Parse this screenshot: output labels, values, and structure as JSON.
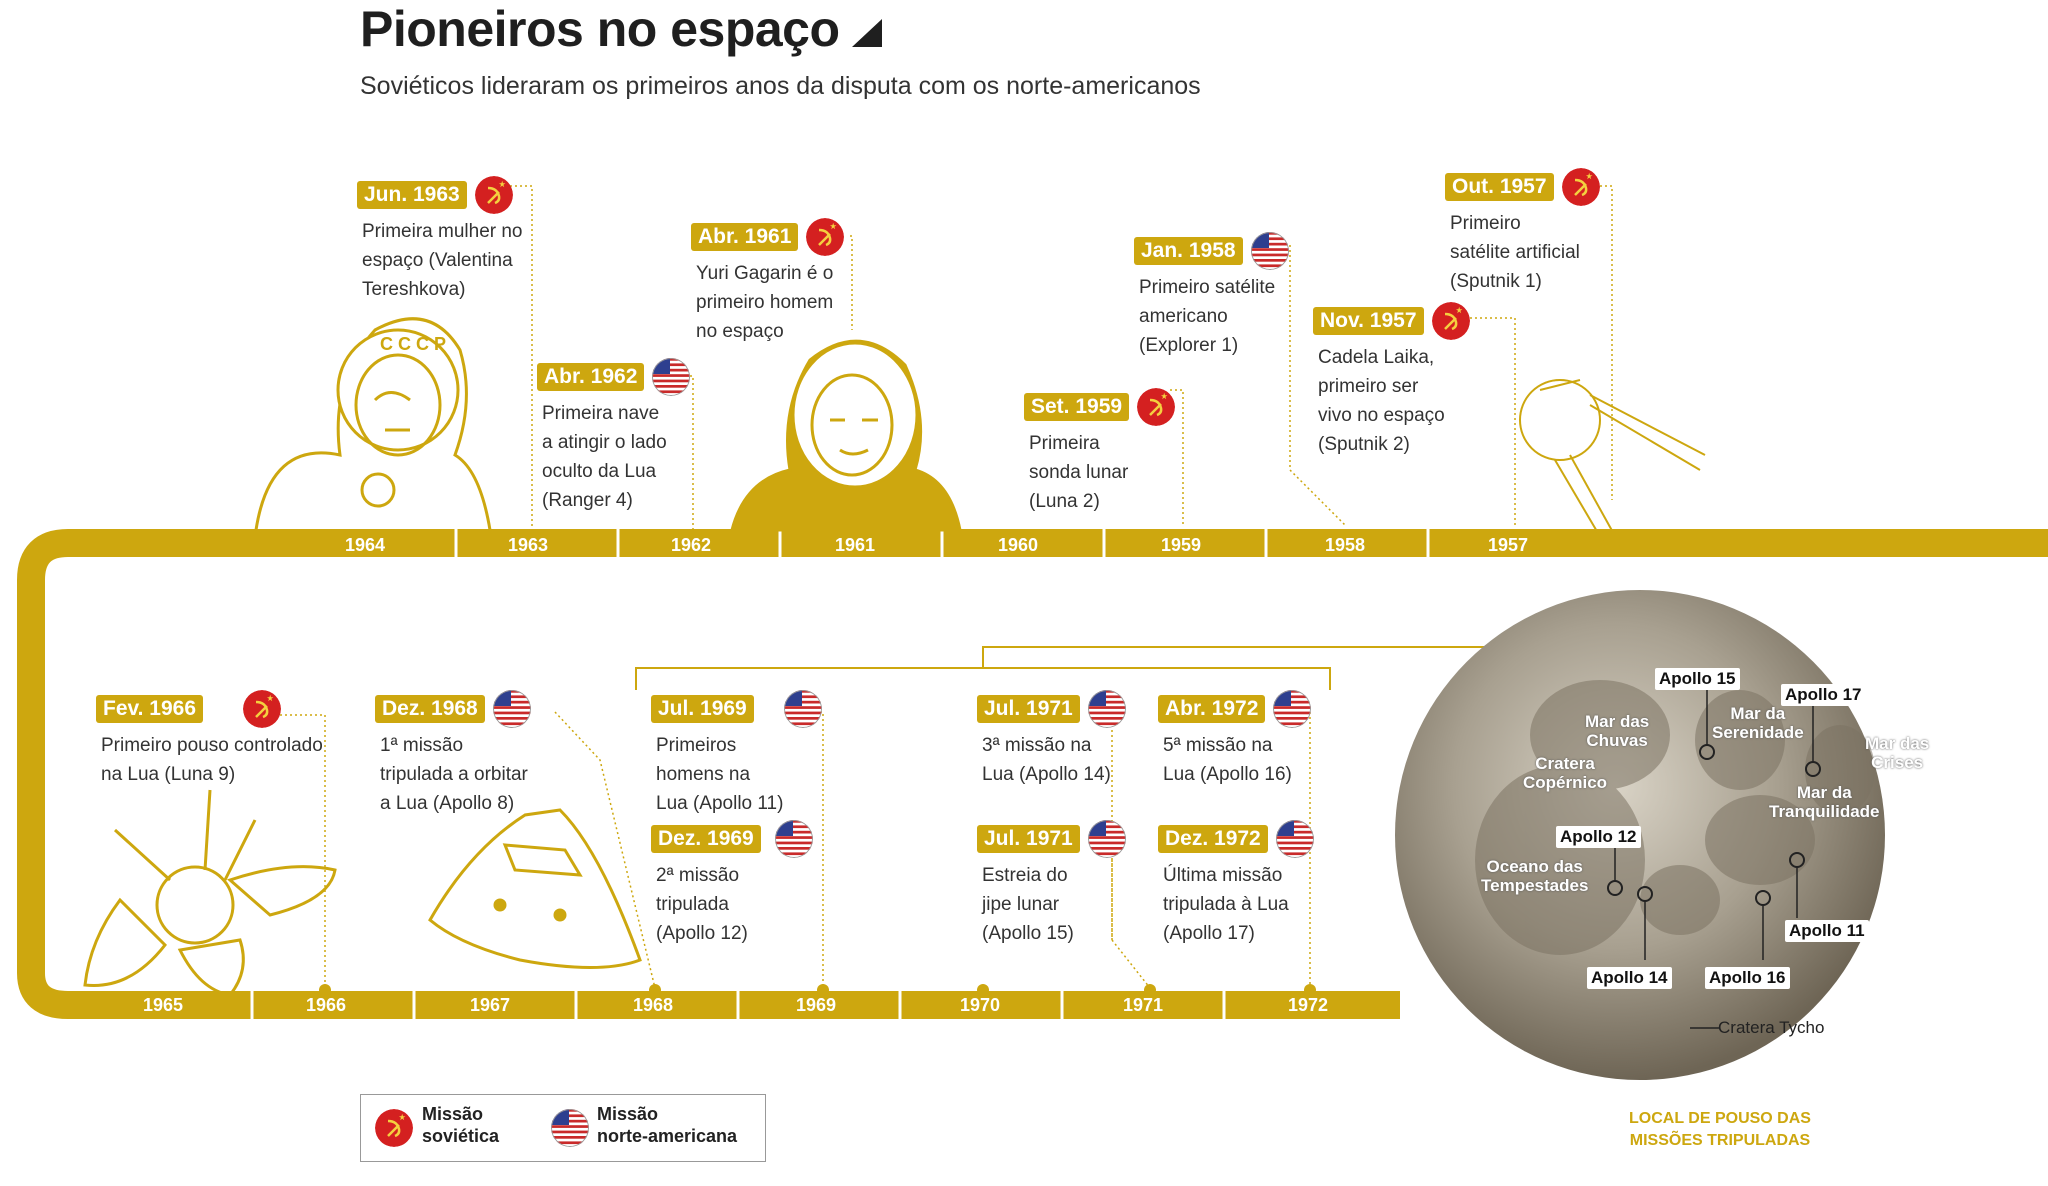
{
  "title": "Pioneiros no espaço",
  "subtitle": "Soviéticos lideraram os primeiros anos da disputa com os norte-americanos",
  "colors": {
    "gold": "#cda70f",
    "soviet": "#d42020",
    "usa_red": "#c92a2a",
    "usa_blue": "#2e3f8f"
  },
  "timeline_top_years": [
    "1964",
    "1963",
    "1962",
    "1961",
    "1960",
    "1959",
    "1958",
    "1957"
  ],
  "timeline_bottom_years": [
    "1965",
    "1966",
    "1967",
    "1968",
    "1969",
    "1970",
    "1971",
    "1972"
  ],
  "events": [
    {
      "date": "Jun. 1963",
      "flag": "soviet",
      "text": "Primeira mulher no\nespaço (Valentina\nTereshkova)"
    },
    {
      "date": "Abr. 1961",
      "flag": "soviet",
      "text": "Yuri Gagarin é o\nprimeiro homem\nno espaço"
    },
    {
      "date": "Abr. 1962",
      "flag": "usa",
      "text": "Primeira nave\na atingir o lado\noculto da Lua\n(Ranger 4)"
    },
    {
      "date": "Jan. 1958",
      "flag": "usa",
      "text": "Primeiro satélite\namericano\n(Explorer 1)"
    },
    {
      "date": "Set. 1959",
      "flag": "soviet",
      "text": "Primeira\nsonda lunar\n(Luna 2)"
    },
    {
      "date": "Out. 1957",
      "flag": "soviet",
      "text": "Primeiro\nsatélite artificial\n(Sputnik 1)"
    },
    {
      "date": "Nov. 1957",
      "flag": "soviet",
      "text": "Cadela Laika,\nprimeiro ser\nvivo no espaço\n(Sputnik 2)"
    },
    {
      "date": "Fev. 1966",
      "flag": "soviet",
      "text": "Primeiro pouso controlado\nna Lua (Luna 9)"
    },
    {
      "date": "Dez. 1968",
      "flag": "usa",
      "text": "1ª missão\ntripulada a orbitar\na Lua (Apollo 8)"
    },
    {
      "date": "Jul. 1969",
      "flag": "usa",
      "text": "Primeiros\nhomens na\nLua (Apollo 11)"
    },
    {
      "date": "Dez. 1969",
      "flag": "usa",
      "text": "2ª missão\ntripulada\n(Apollo 12)"
    },
    {
      "date": "Jul. 1971",
      "flag": "usa",
      "text": "3ª missão na\nLua (Apollo 14)"
    },
    {
      "date": "Jul. 1971",
      "flag": "usa",
      "text": "Estreia do\njipe lunar\n(Apollo 15)"
    },
    {
      "date": "Abr. 1972",
      "flag": "usa",
      "text": "5ª missão na\nLua (Apollo 16)"
    },
    {
      "date": "Dez. 1972",
      "flag": "usa",
      "text": "Última missão\ntripulada à Lua\n(Apollo 17)"
    }
  ],
  "moon": {
    "regions": [
      "Mar das\nChuvas",
      "Mar da\nSerenidade",
      "Mar das\nCrises",
      "Cratera\nCopérnico",
      "Mar da\nTranquilidade",
      "Oceano das\nTempestades",
      "Cratera Tycho"
    ],
    "sites": [
      "Apollo 15",
      "Apollo 17",
      "Apollo 12",
      "Apollo 11",
      "Apollo 14",
      "Apollo 16"
    ]
  },
  "caption": "LOCAL DE POUSO DAS\nMISSÕES TRIPULADAS",
  "legend": {
    "soviet": "Missão\nsoviética",
    "usa": "Missão\nnorte-americana"
  }
}
